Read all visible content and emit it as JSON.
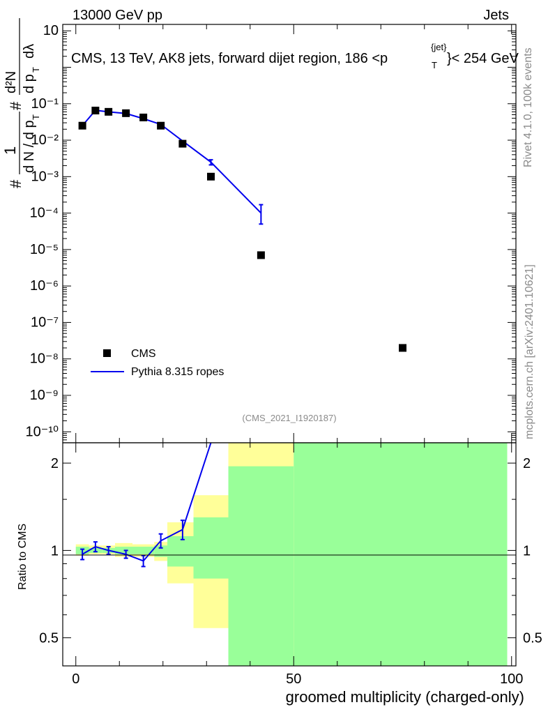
{
  "header": {
    "left": "13000 GeV pp",
    "right": "Jets"
  },
  "title": {
    "main": "CMS, 13 TeV, AK8 jets, forward dijet region, 186 <p",
    "sup": "{jet}",
    "sub": "T",
    "end": "}< 254 GeV"
  },
  "side_text": {
    "rivet": "Rivet 4.1.0,  100k events",
    "mcplots": "mcplots.cern.ch [arXiv:2401.10621]"
  },
  "watermark": "(CMS_2021_I1920187)",
  "ylabel_top": {
    "prefix": "#",
    "one": "1",
    "dN_denom": "d N / d p",
    "dN_sub": "T",
    "hash2": "#",
    "d2N": "d²N",
    "denom2": "d p",
    "denom2_sub": "T",
    "dlambda": "dλ"
  },
  "legend": {
    "cms": "CMS",
    "mc": "Pythia 8.315 ropes"
  },
  "colors": {
    "data": "#000000",
    "mc": "#0000ee",
    "band_outer": "#ffff99",
    "band_inner": "#99ff99"
  },
  "chart_data": {
    "type": "scatter",
    "xlabel": "groomed multiplicity (charged-only)",
    "ylabel_bottom": "Ratio to CMS",
    "xlim": [
      -3,
      101
    ],
    "ylim_top": [
      5e-11,
      15
    ],
    "ylim_bottom": [
      0.4,
      2.35
    ],
    "yscale": "log",
    "x_ticks": [
      "0",
      "50",
      "100"
    ],
    "y_ticks_top": [
      "10",
      "1",
      "10⁻¹",
      "10⁻²",
      "10⁻³",
      "10⁻⁴",
      "10⁻⁵",
      "10⁻⁶",
      "10⁻⁷",
      "10⁻⁸",
      "10⁻⁹",
      "10⁻¹⁰"
    ],
    "y_ticks_bottom": [
      "0.5",
      "1",
      "2"
    ],
    "series": [
      {
        "name": "CMS",
        "x": [
          1.5,
          4.5,
          7.5,
          11.5,
          15.5,
          19.5,
          24.5,
          31.0,
          42.5,
          75.0
        ],
        "y": [
          0.025,
          0.065,
          0.06,
          0.055,
          0.042,
          0.025,
          0.008,
          0.001,
          7e-06,
          2e-08
        ]
      },
      {
        "name": "Pythia 8.315 ropes",
        "x": [
          1.5,
          4.5,
          7.5,
          11.5,
          15.5,
          19.5,
          24.5,
          31.0,
          42.5
        ],
        "y": [
          0.025,
          0.066,
          0.06,
          0.054,
          0.039,
          0.027,
          0.0095,
          0.0025,
          0.0001
        ],
        "yerr_low": [
          0,
          0,
          0,
          0,
          0,
          0,
          0,
          0.0004,
          5e-05
        ],
        "yerr_high": [
          0,
          0,
          0,
          0,
          0,
          0,
          0,
          0.0004,
          7e-05
        ]
      }
    ],
    "ratio": {
      "x": [
        1.5,
        4.5,
        7.5,
        11.5,
        15.5,
        19.5,
        24.5,
        31.0
      ],
      "y": [
        0.97,
        1.03,
        1.0,
        0.97,
        0.92,
        1.08,
        1.18,
        2.5
      ],
      "yerr": [
        0.04,
        0.04,
        0.03,
        0.03,
        0.04,
        0.06,
        0.09,
        0.0
      ]
    },
    "bands": [
      {
        "x0": 0,
        "x1": 3,
        "outer": [
          0.96,
          1.05
        ],
        "inner": [
          0.97,
          1.03
        ]
      },
      {
        "x0": 3,
        "x1": 6,
        "outer": [
          0.97,
          1.04
        ],
        "inner": [
          0.98,
          1.02
        ]
      },
      {
        "x0": 6,
        "x1": 9,
        "outer": [
          0.97,
          1.04
        ],
        "inner": [
          0.98,
          1.02
        ]
      },
      {
        "x0": 9,
        "x1": 13,
        "outer": [
          0.95,
          1.06
        ],
        "inner": [
          0.97,
          1.03
        ]
      },
      {
        "x0": 13,
        "x1": 18,
        "outer": [
          0.95,
          1.05
        ],
        "inner": [
          0.97,
          1.03
        ]
      },
      {
        "x0": 18,
        "x1": 21,
        "outer": [
          0.92,
          1.07
        ],
        "inner": [
          0.95,
          1.04
        ]
      },
      {
        "x0": 21,
        "x1": 27,
        "outer": [
          0.77,
          1.25
        ],
        "inner": [
          0.88,
          1.12
        ]
      },
      {
        "x0": 27,
        "x1": 35,
        "outer": [
          0.54,
          1.55
        ],
        "inner": [
          0.8,
          1.3
        ]
      },
      {
        "x0": 35,
        "x1": 50,
        "outer": [
          0.35,
          2.4
        ],
        "inner": [
          0.35,
          1.95
        ]
      },
      {
        "x0": 50,
        "x1": 99,
        "outer": [
          0.35,
          2.4
        ],
        "inner": [
          0.35,
          2.4
        ]
      }
    ]
  }
}
